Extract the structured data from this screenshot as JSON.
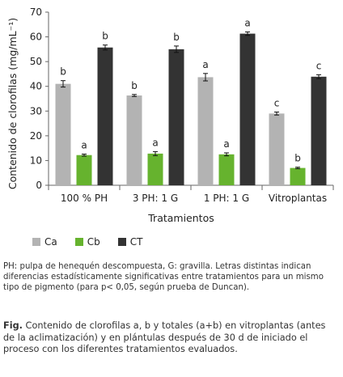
{
  "chart_data": {
    "type": "bar",
    "ylabel": "Contenido de clorofilas (mg/mL⁻¹)",
    "xlabel": "Tratamientos",
    "ylim": [
      0,
      70
    ],
    "yticks": [
      0,
      10,
      20,
      30,
      40,
      50,
      60,
      70
    ],
    "categories": [
      "100 % PH",
      "3 PH: 1 G",
      "1 PH: 1 G",
      "Vitroplantas"
    ],
    "series": [
      {
        "name": "Ca",
        "color": "#b3b3b3",
        "values": [
          41,
          36.3,
          43.7,
          29
        ],
        "errors": [
          1.3,
          0.4,
          1.5,
          0.6
        ],
        "letters": [
          "b",
          "b",
          "a",
          "c"
        ]
      },
      {
        "name": "Cb",
        "color": "#66b32e",
        "values": [
          12.2,
          12.8,
          12.5,
          7
        ],
        "errors": [
          0.4,
          0.8,
          0.6,
          0.3
        ],
        "letters": [
          "a",
          "a",
          "a",
          "b"
        ]
      },
      {
        "name": "CT",
        "color": "#333333",
        "values": [
          55.7,
          55,
          61.3,
          43.9
        ],
        "errors": [
          1.0,
          1.3,
          0.7,
          0.8
        ],
        "letters": [
          "b",
          "b",
          "a",
          "c"
        ]
      }
    ],
    "grid": false,
    "legend_position": "bottom-left"
  },
  "note": "PH: pulpa de henequén descompuesta, G: gravilla. Letras distintas indican diferencias estadísticamente significativas entre tratamientos para un mismo tipo de pigmento (para p< 0,05, según prueba de Duncan).",
  "caption": {
    "label": "Fig.",
    "text": " Contenido de clorofilas a, b y totales (a+b) en vitroplantas (antes de la aclimatización) y en plántulas después de 30 d de iniciado el proceso con los diferentes tratamientos evaluados."
  }
}
